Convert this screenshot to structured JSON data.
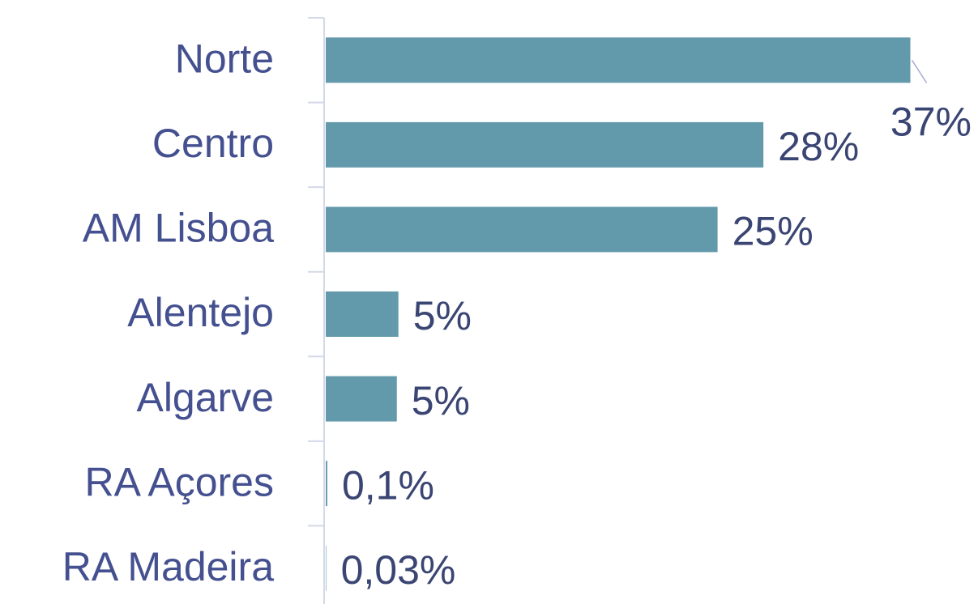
{
  "chart_data": {
    "type": "bar",
    "orientation": "horizontal",
    "categories": [
      "Norte",
      "Centro",
      "AM Lisboa",
      "Alentejo",
      "Algarve",
      "RA Açores",
      "RA Madeira"
    ],
    "values": [
      37,
      27.7,
      24.8,
      4.6,
      4.5,
      0.1,
      0.03
    ],
    "value_labels": [
      "37%",
      "28%",
      "25%",
      "5%",
      "5%",
      "0,1%",
      "0,03%"
    ],
    "color": "#639aab",
    "xlim": [
      0,
      40
    ]
  }
}
